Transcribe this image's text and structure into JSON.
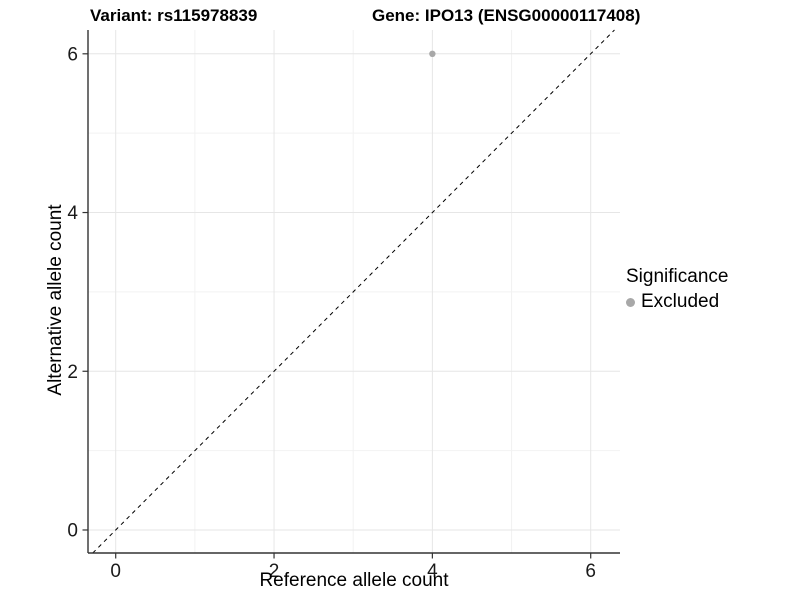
{
  "chart_data": {
    "type": "scatter",
    "titles": {
      "variant": "Variant: rs115978839",
      "gene": "Gene: IPO13 (ENSG00000117408)"
    },
    "xlabel": "Reference allele count",
    "ylabel": "Alternative allele count",
    "xticks": [
      0,
      2,
      4,
      6
    ],
    "yticks": [
      0,
      2,
      4,
      6
    ],
    "xminor": [
      1,
      3,
      5
    ],
    "yminor": [
      1,
      3,
      5
    ],
    "xlim": [
      -0.35,
      6.37
    ],
    "ylim": [
      -0.29,
      6.3
    ],
    "grid": "major and minor, light gray on white panel",
    "axis_lines": "left and bottom only",
    "identity_line": {
      "from": -0.29,
      "to": 6.3,
      "dash": "4 4",
      "color": "#000000",
      "width": 1
    },
    "series": [
      {
        "name": "Excluded",
        "color": "#a8a8a8",
        "points": [
          {
            "x": 4,
            "y": 6
          }
        ]
      }
    ],
    "legend": {
      "title": "Significance",
      "position": "right",
      "entries": [
        {
          "label": "Excluded",
          "color": "#a8a8a8"
        }
      ]
    },
    "colors": {
      "point": "#a8a8a8",
      "grid_major": "#e6e6e6",
      "grid_minor": "#f2f2f2",
      "axis": "#333333",
      "tick_text": "#1a1a1a"
    }
  }
}
